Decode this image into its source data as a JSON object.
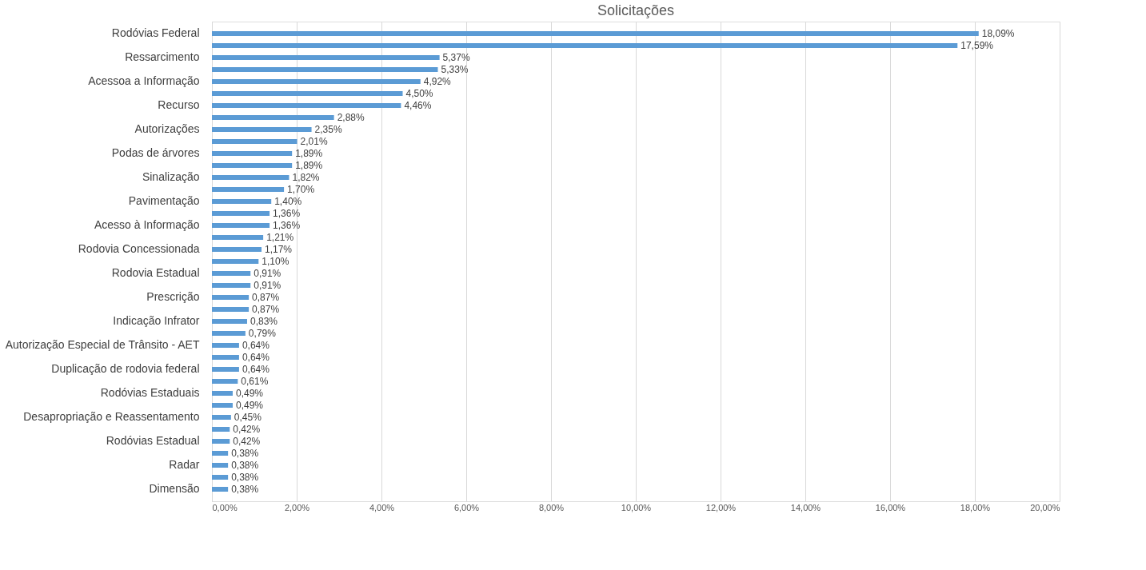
{
  "chart_data": {
    "type": "bar",
    "orientation": "horizontal",
    "title": "Solicitações",
    "categories": [
      "Rodóvias Federal",
      null,
      "Ressarcimento",
      null,
      "Acessoa a Informação",
      null,
      "Recurso",
      null,
      "Autorizações",
      null,
      "Podas de árvores",
      null,
      "Sinalização",
      null,
      "Pavimentação",
      null,
      "Acesso à Informação",
      null,
      "Rodovia Concessionada",
      null,
      "Rodovia Estadual",
      null,
      "Prescrição",
      null,
      "Indicação Infrator",
      null,
      "Autorização Especial de Trânsito - AET",
      null,
      "Duplicação de rodovia federal",
      null,
      "Rodóvias Estaduais",
      null,
      "Desapropriação e Reassentamento",
      null,
      "Rodóvias Estadual",
      null,
      "Radar",
      null,
      "Dimensão"
    ],
    "values": [
      18.09,
      17.59,
      5.37,
      5.33,
      4.92,
      4.5,
      4.46,
      2.88,
      2.35,
      2.01,
      1.89,
      1.89,
      1.82,
      1.7,
      1.4,
      1.36,
      1.36,
      1.21,
      1.17,
      1.1,
      0.91,
      0.91,
      0.87,
      0.87,
      0.83,
      0.79,
      0.64,
      0.64,
      0.64,
      0.61,
      0.49,
      0.49,
      0.45,
      0.42,
      0.42,
      0.38,
      0.38,
      0.38,
      0.38
    ],
    "value_labels": [
      "18,09%",
      "17,59%",
      "5,37%",
      "5,33%",
      "4,92%",
      "4,50%",
      "4,46%",
      "2,88%",
      "2,35%",
      "2,01%",
      "1,89%",
      "1,89%",
      "1,82%",
      "1,70%",
      "1,40%",
      "1,36%",
      "1,36%",
      "1,21%",
      "1,17%",
      "1,10%",
      "0,91%",
      "0,91%",
      "0,87%",
      "0,87%",
      "0,83%",
      "0,79%",
      "0,64%",
      "0,64%",
      "0,64%",
      "0,61%",
      "0,49%",
      "0,49%",
      "0,45%",
      "0,42%",
      "0,42%",
      "0,38%",
      "0,38%",
      "0,38%",
      "0,38%"
    ],
    "color": "#5b9bd5",
    "xlim": [
      0,
      20
    ],
    "xticks": [
      {
        "value": 0,
        "label": "0,00%"
      },
      {
        "value": 2,
        "label": "2,00%"
      },
      {
        "value": 4,
        "label": "4,00%"
      },
      {
        "value": 6,
        "label": "6,00%"
      },
      {
        "value": 8,
        "label": "8,00%"
      },
      {
        "value": 10,
        "label": "10,00%"
      },
      {
        "value": 12,
        "label": "12,00%"
      },
      {
        "value": 14,
        "label": "14,00%"
      },
      {
        "value": 16,
        "label": "16,00%"
      },
      {
        "value": 18,
        "label": "18,00%"
      },
      {
        "value": 20,
        "label": "20,00%"
      }
    ],
    "grid": "x"
  }
}
